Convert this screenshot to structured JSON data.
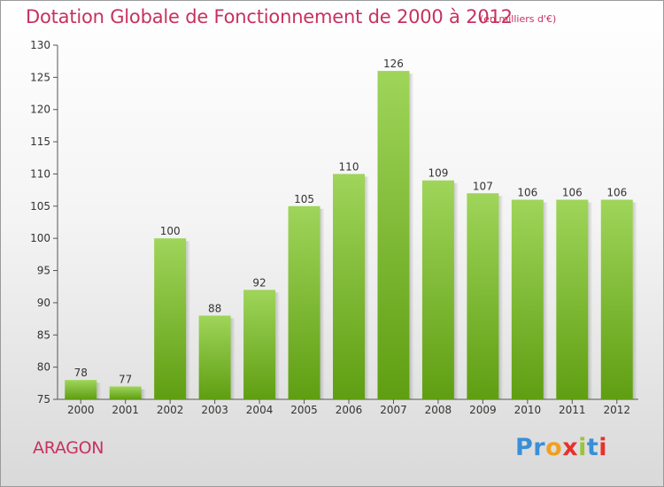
{
  "header": {
    "title": "Dotation Globale de Fonctionnement de 2000 à 2012",
    "subtitle": "(en milliers d'€)"
  },
  "footer": {
    "commune": "ARAGON",
    "logo": "Proxiti"
  },
  "colors": {
    "accent": "#c8315f",
    "bar_top": "#9fd55a",
    "bar_bottom": "#5f9e12",
    "logo_letters": [
      "#3a8fd6",
      "#3a8fd6",
      "#f0a020",
      "#e8312c",
      "#9ac43a",
      "#3a8fd6",
      "#e8312c"
    ]
  },
  "chart_data": {
    "type": "bar",
    "title": "Dotation Globale de Fonctionnement de 2000 à 2012",
    "categories": [
      "2000",
      "2001",
      "2002",
      "2003",
      "2004",
      "2005",
      "2006",
      "2007",
      "2008",
      "2009",
      "2010",
      "2011",
      "2012"
    ],
    "values": [
      78,
      77,
      100,
      88,
      92,
      105,
      110,
      126,
      109,
      107,
      106,
      106,
      106
    ],
    "ylim": [
      75,
      130
    ],
    "yticks": [
      75,
      80,
      85,
      90,
      95,
      100,
      105,
      110,
      115,
      120,
      125,
      130
    ],
    "grid": false,
    "legend": "none"
  }
}
